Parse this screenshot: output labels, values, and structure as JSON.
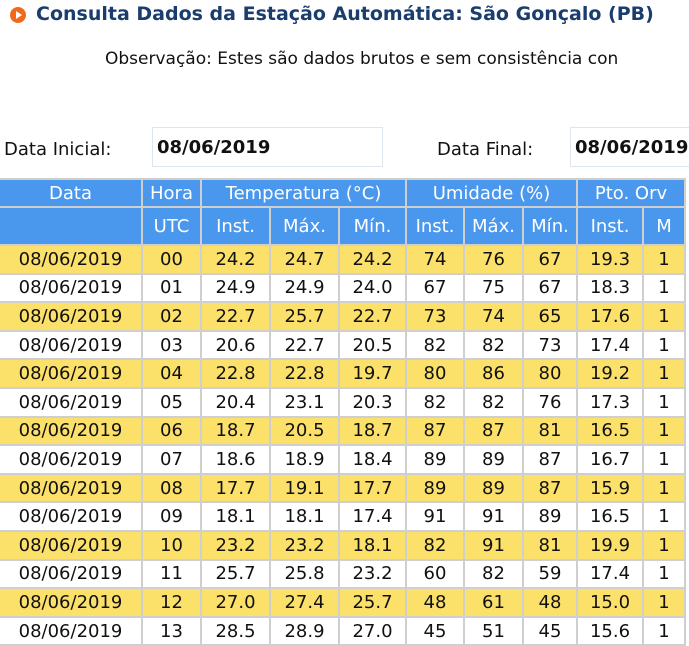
{
  "header": {
    "title": "Consulta Dados da Estação Automática: São Gonçalo (PB)",
    "note": "Observação: Estes são dados brutos e sem consistência con"
  },
  "form": {
    "start_label": "Data Inicial:",
    "start_value": "08/06/2019",
    "end_label": "Data Final:",
    "end_value": "08/06/2019"
  },
  "table": {
    "groups": [
      "Data",
      "Hora",
      "Temperatura (°C)",
      "Umidade (%)",
      "Pto. Orv"
    ],
    "subheaders": [
      "UTC",
      "Inst.",
      "Máx.",
      "Mín.",
      "Inst.",
      "Máx.",
      "Mín.",
      "Inst.",
      "M"
    ],
    "rows": [
      [
        "08/06/2019",
        "00",
        "24.2",
        "24.7",
        "24.2",
        "74",
        "76",
        "67",
        "19.3",
        "1"
      ],
      [
        "08/06/2019",
        "01",
        "24.9",
        "24.9",
        "24.0",
        "67",
        "75",
        "67",
        "18.3",
        "1"
      ],
      [
        "08/06/2019",
        "02",
        "22.7",
        "25.7",
        "22.7",
        "73",
        "74",
        "65",
        "17.6",
        "1"
      ],
      [
        "08/06/2019",
        "03",
        "20.6",
        "22.7",
        "20.5",
        "82",
        "82",
        "73",
        "17.4",
        "1"
      ],
      [
        "08/06/2019",
        "04",
        "22.8",
        "22.8",
        "19.7",
        "80",
        "86",
        "80",
        "19.2",
        "1"
      ],
      [
        "08/06/2019",
        "05",
        "20.4",
        "23.1",
        "20.3",
        "82",
        "82",
        "76",
        "17.3",
        "1"
      ],
      [
        "08/06/2019",
        "06",
        "18.7",
        "20.5",
        "18.7",
        "87",
        "87",
        "81",
        "16.5",
        "1"
      ],
      [
        "08/06/2019",
        "07",
        "18.6",
        "18.9",
        "18.4",
        "89",
        "89",
        "87",
        "16.7",
        "1"
      ],
      [
        "08/06/2019",
        "08",
        "17.7",
        "19.1",
        "17.7",
        "89",
        "89",
        "87",
        "15.9",
        "1"
      ],
      [
        "08/06/2019",
        "09",
        "18.1",
        "18.1",
        "17.4",
        "91",
        "91",
        "89",
        "16.5",
        "1"
      ],
      [
        "08/06/2019",
        "10",
        "23.2",
        "23.2",
        "18.1",
        "82",
        "91",
        "81",
        "19.9",
        "1"
      ],
      [
        "08/06/2019",
        "11",
        "25.7",
        "25.8",
        "23.2",
        "60",
        "82",
        "59",
        "17.4",
        "1"
      ],
      [
        "08/06/2019",
        "12",
        "27.0",
        "27.4",
        "25.7",
        "48",
        "61",
        "48",
        "15.0",
        "1"
      ],
      [
        "08/06/2019",
        "13",
        "28.5",
        "28.9",
        "27.0",
        "45",
        "51",
        "45",
        "15.6",
        "1"
      ]
    ]
  }
}
